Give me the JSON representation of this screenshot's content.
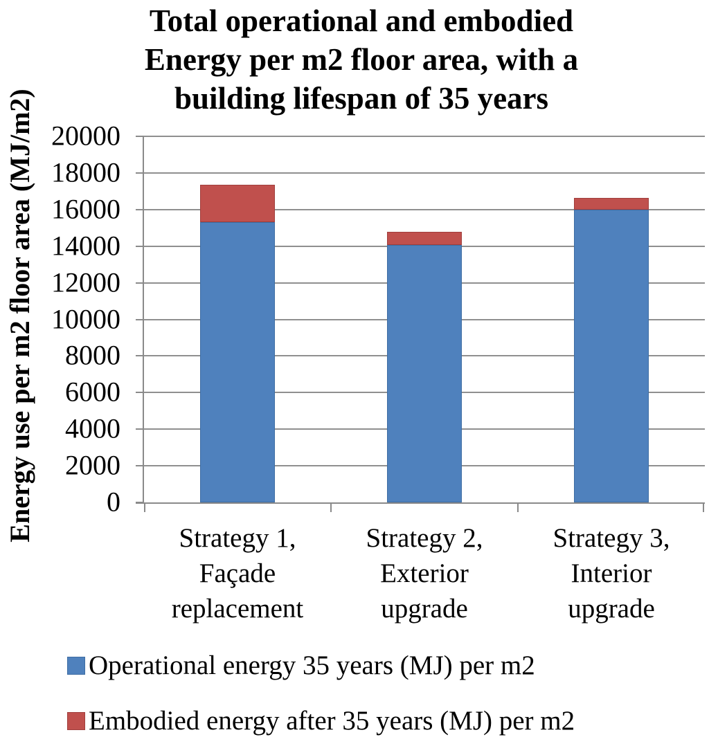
{
  "title": "Total operational and embodied\nEnergy per m2 floor area, with a\nbuilding lifespan of 35 years",
  "chart_data": {
    "type": "bar",
    "stacked": true,
    "title": "Total operational and embodied Energy per m2 floor area, with a building lifespan of 35 years",
    "categories": [
      "Strategy 1,\nFaçade\nreplacement",
      "Strategy 2,\nExterior\nupgrade",
      "Strategy 3,\nInterior\nupgrade"
    ],
    "series": [
      {
        "name": "Operational energy 35 years (MJ) per m2",
        "color": "#4F81BD",
        "border_color": "#3e6da3",
        "values": [
          15300,
          14050,
          16000
        ]
      },
      {
        "name": "Embodied energy after 35 years (MJ) per m2",
        "color": "#C0504D",
        "border_color": "#a03e3c",
        "values": [
          2050,
          750,
          630
        ]
      }
    ],
    "xlabel": "",
    "ylabel": "Energy use per m2 floor area (MJ/m2)",
    "ylim": [
      0,
      20000
    ],
    "y_ticks": [
      0,
      2000,
      4000,
      6000,
      8000,
      10000,
      12000,
      14000,
      16000,
      18000,
      20000
    ],
    "grid": true,
    "legend_position": "bottom",
    "totals": [
      17350,
      14800,
      16630
    ]
  },
  "colors": {
    "grid": "#8f8f8f",
    "axis": "#8a8a8a",
    "text": "#000000",
    "background": "#ffffff"
  }
}
